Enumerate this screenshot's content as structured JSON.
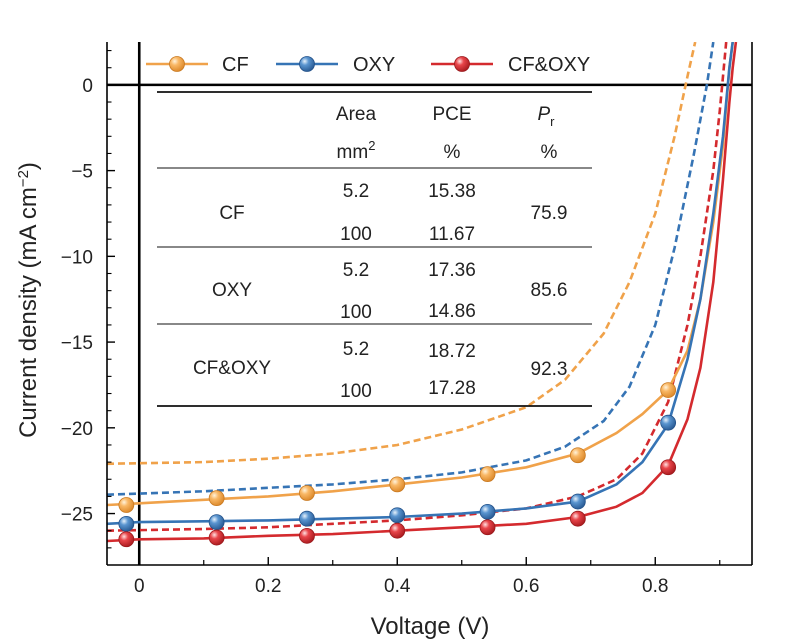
{
  "chart_data": {
    "type": "line",
    "xlabel": "Voltage (V)",
    "ylabel": "Current density (mA cm",
    "ylabel_sup": "−2",
    "ylabel_close": ")",
    "xlim": [
      -0.05,
      0.95
    ],
    "ylim": [
      -28,
      2.5
    ],
    "x_ticks": [
      0,
      0.2,
      0.4,
      0.6,
      0.8
    ],
    "x_tick_labels": [
      "0",
      "0.2",
      "0.4",
      "0.6",
      "0.8"
    ],
    "y_ticks": [
      0,
      -5,
      -10,
      -15,
      -20,
      -25
    ],
    "y_tick_labels": [
      "0",
      "−5",
      "−10",
      "−15",
      "−20",
      "−25"
    ],
    "series": [
      {
        "name": "CF",
        "color": "#f0a24a",
        "marker_label": "CF",
        "solid": [
          [
            -0.05,
            -24.5
          ],
          [
            0,
            -24.4
          ],
          [
            0.1,
            -24.2
          ],
          [
            0.2,
            -24.0
          ],
          [
            0.3,
            -23.7
          ],
          [
            0.4,
            -23.3
          ],
          [
            0.5,
            -22.9
          ],
          [
            0.6,
            -22.3
          ],
          [
            0.68,
            -21.5
          ],
          [
            0.74,
            -20.3
          ],
          [
            0.78,
            -19.2
          ],
          [
            0.82,
            -17.8
          ],
          [
            0.85,
            -15.5
          ],
          [
            0.87,
            -12.5
          ],
          [
            0.89,
            -8.0
          ],
          [
            0.905,
            -3.5
          ],
          [
            0.915,
            1.0
          ],
          [
            0.92,
            2.5
          ]
        ],
        "markers": [
          [
            -0.02,
            -24.5
          ],
          [
            0.12,
            -24.1
          ],
          [
            0.26,
            -23.8
          ],
          [
            0.4,
            -23.3
          ],
          [
            0.54,
            -22.7
          ],
          [
            0.68,
            -21.6
          ],
          [
            0.82,
            -17.8
          ]
        ],
        "dashed": [
          [
            -0.05,
            -22.1
          ],
          [
            0.1,
            -22.0
          ],
          [
            0.2,
            -21.8
          ],
          [
            0.3,
            -21.5
          ],
          [
            0.4,
            -21.0
          ],
          [
            0.5,
            -20.1
          ],
          [
            0.6,
            -18.8
          ],
          [
            0.66,
            -17.2
          ],
          [
            0.72,
            -14.5
          ],
          [
            0.76,
            -11.5
          ],
          [
            0.8,
            -7.5
          ],
          [
            0.83,
            -3.0
          ],
          [
            0.85,
            0.5
          ],
          [
            0.862,
            2.5
          ]
        ]
      },
      {
        "name": "OXY",
        "color": "#3674b5",
        "marker_label": "OXY",
        "solid": [
          [
            -0.05,
            -25.6
          ],
          [
            0,
            -25.5
          ],
          [
            0.1,
            -25.45
          ],
          [
            0.2,
            -25.4
          ],
          [
            0.3,
            -25.3
          ],
          [
            0.4,
            -25.2
          ],
          [
            0.5,
            -25.0
          ],
          [
            0.6,
            -24.7
          ],
          [
            0.68,
            -24.3
          ],
          [
            0.74,
            -23.3
          ],
          [
            0.78,
            -22.0
          ],
          [
            0.82,
            -19.8
          ],
          [
            0.85,
            -16.0
          ],
          [
            0.87,
            -12.5
          ],
          [
            0.89,
            -7.5
          ],
          [
            0.905,
            -3.0
          ],
          [
            0.915,
            1.0
          ],
          [
            0.92,
            2.5
          ]
        ],
        "markers": [
          [
            -0.02,
            -25.6
          ],
          [
            0.12,
            -25.5
          ],
          [
            0.26,
            -25.3
          ],
          [
            0.4,
            -25.1
          ],
          [
            0.54,
            -24.9
          ],
          [
            0.68,
            -24.3
          ],
          [
            0.82,
            -19.7
          ]
        ],
        "dashed": [
          [
            -0.05,
            -23.9
          ],
          [
            0.1,
            -23.7
          ],
          [
            0.2,
            -23.5
          ],
          [
            0.3,
            -23.3
          ],
          [
            0.4,
            -23.0
          ],
          [
            0.5,
            -22.6
          ],
          [
            0.6,
            -21.9
          ],
          [
            0.66,
            -21.1
          ],
          [
            0.72,
            -19.6
          ],
          [
            0.76,
            -17.6
          ],
          [
            0.8,
            -14.0
          ],
          [
            0.83,
            -9.5
          ],
          [
            0.86,
            -4.0
          ],
          [
            0.88,
            0.0
          ],
          [
            0.89,
            2.5
          ]
        ]
      },
      {
        "name": "CF&OXY",
        "color": "#d42a2e",
        "marker_label": "CF&OXY",
        "solid": [
          [
            -0.05,
            -26.6
          ],
          [
            0,
            -26.5
          ],
          [
            0.1,
            -26.45
          ],
          [
            0.2,
            -26.3
          ],
          [
            0.3,
            -26.2
          ],
          [
            0.4,
            -26.0
          ],
          [
            0.5,
            -25.8
          ],
          [
            0.6,
            -25.6
          ],
          [
            0.68,
            -25.2
          ],
          [
            0.74,
            -24.6
          ],
          [
            0.78,
            -23.8
          ],
          [
            0.82,
            -22.2
          ],
          [
            0.85,
            -19.5
          ],
          [
            0.87,
            -16.5
          ],
          [
            0.89,
            -11.5
          ],
          [
            0.905,
            -5.5
          ],
          [
            0.915,
            -1.0
          ],
          [
            0.92,
            1.0
          ],
          [
            0.925,
            2.5
          ]
        ],
        "markers": [
          [
            -0.02,
            -26.5
          ],
          [
            0.12,
            -26.4
          ],
          [
            0.26,
            -26.3
          ],
          [
            0.4,
            -26.0
          ],
          [
            0.54,
            -25.8
          ],
          [
            0.68,
            -25.3
          ],
          [
            0.82,
            -22.3
          ]
        ],
        "dashed": [
          [
            -0.05,
            -26.0
          ],
          [
            0.1,
            -25.9
          ],
          [
            0.2,
            -25.8
          ],
          [
            0.3,
            -25.6
          ],
          [
            0.4,
            -25.4
          ],
          [
            0.5,
            -25.1
          ],
          [
            0.6,
            -24.7
          ],
          [
            0.68,
            -24.0
          ],
          [
            0.74,
            -23.0
          ],
          [
            0.78,
            -21.5
          ],
          [
            0.82,
            -18.5
          ],
          [
            0.85,
            -14.0
          ],
          [
            0.87,
            -10.0
          ],
          [
            0.89,
            -5.0
          ],
          [
            0.9,
            -1.5
          ],
          [
            0.91,
            2.5
          ]
        ]
      }
    ],
    "table": {
      "headers": [
        {
          "name": "Area",
          "unit": "mm",
          "unit_sup": "2"
        },
        {
          "name": "PCE",
          "unit": "%",
          "unit_sup": ""
        },
        {
          "name": "P",
          "name_sub": "r",
          "unit": "%",
          "unit_sup": ""
        }
      ],
      "rows": [
        {
          "label": "CF",
          "areas": [
            "5.2",
            "100"
          ],
          "pce": [
            "15.38",
            "11.67"
          ],
          "pr": "75.9"
        },
        {
          "label": "OXY",
          "areas": [
            "5.2",
            "100"
          ],
          "pce": [
            "17.36",
            "14.86"
          ],
          "pr": "85.6"
        },
        {
          "label": "CF&OXY",
          "areas": [
            "5.2",
            "100"
          ],
          "pce": [
            "18.72",
            "17.28"
          ],
          "pr": "92.3"
        }
      ]
    }
  }
}
